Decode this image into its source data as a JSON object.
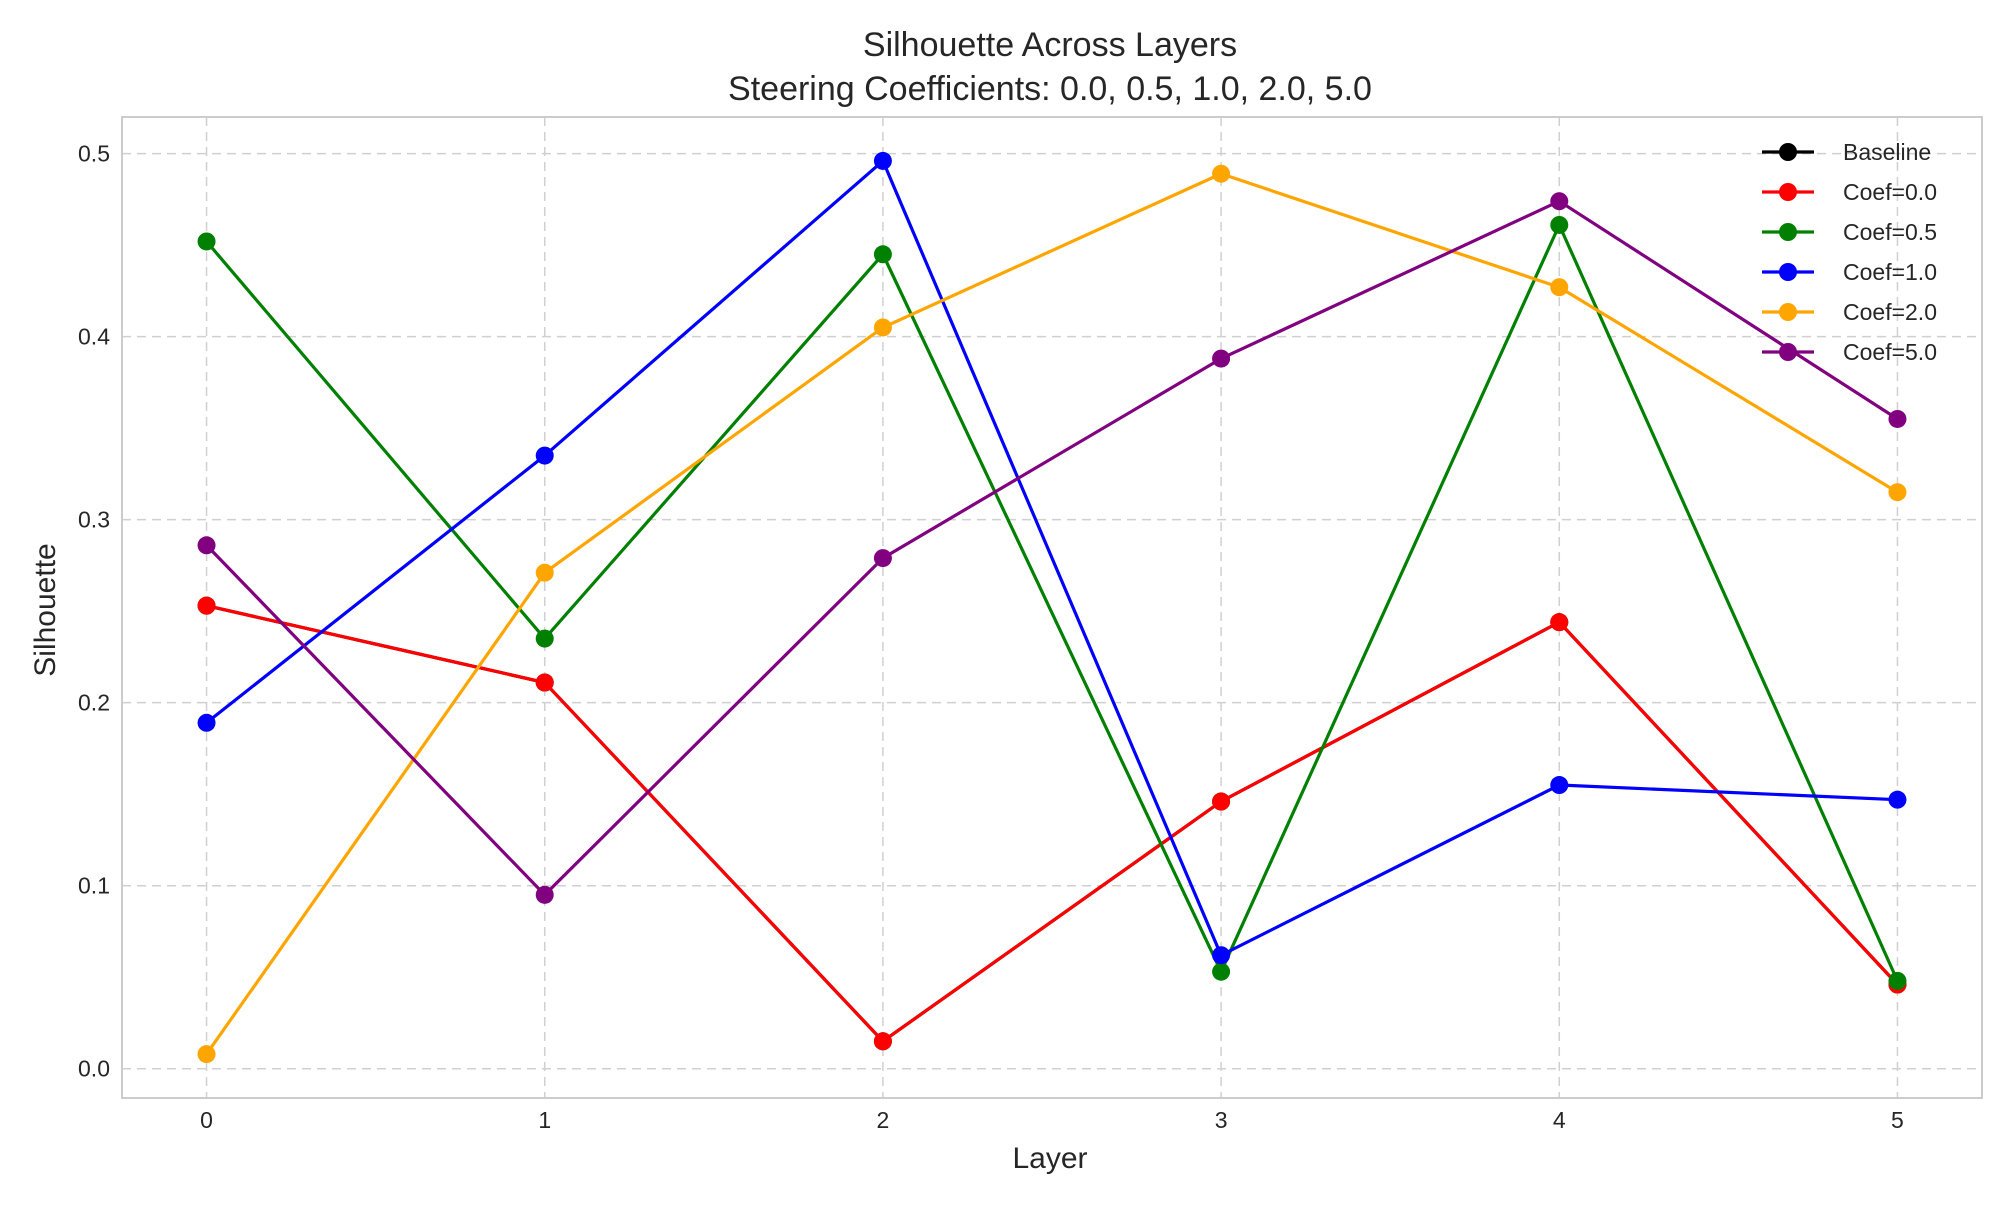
{
  "chart_data": {
    "type": "line",
    "title": "Silhouette Across Layers",
    "subtitle": "Steering Coefficients: 0.0, 0.5, 1.0, 2.0, 5.0",
    "xlabel": "Layer",
    "ylabel": "Silhouette",
    "x": [
      0,
      1,
      2,
      3,
      4,
      5
    ],
    "x_ticks": [
      "0",
      "1",
      "2",
      "3",
      "4",
      "5"
    ],
    "y_ticks": [
      "0.0",
      "0.1",
      "0.2",
      "0.3",
      "0.4",
      "0.5"
    ],
    "xlim": [
      -0.25,
      5.25
    ],
    "ylim": [
      -0.016,
      0.52
    ],
    "grid": true,
    "legend_position": "top-right",
    "series": [
      {
        "name": "Baseline",
        "color": "#000000",
        "values": [
          0.253,
          0.211,
          0.015,
          0.146,
          0.244,
          0.046
        ]
      },
      {
        "name": "Coef=0.0",
        "color": "#ff0000",
        "values": [
          0.253,
          0.211,
          0.015,
          0.146,
          0.244,
          0.046
        ]
      },
      {
        "name": "Coef=0.5",
        "color": "#008000",
        "values": [
          0.452,
          0.235,
          0.445,
          0.053,
          0.461,
          0.048
        ]
      },
      {
        "name": "Coef=1.0",
        "color": "#0000ff",
        "values": [
          0.189,
          0.335,
          0.496,
          0.062,
          0.155,
          0.147
        ]
      },
      {
        "name": "Coef=2.0",
        "color": "#ffa500",
        "values": [
          0.008,
          0.271,
          0.405,
          0.489,
          0.427,
          0.315
        ]
      },
      {
        "name": "Coef=5.0",
        "color": "#800080",
        "values": [
          0.286,
          0.095,
          0.279,
          0.388,
          0.474,
          0.355
        ]
      }
    ]
  }
}
